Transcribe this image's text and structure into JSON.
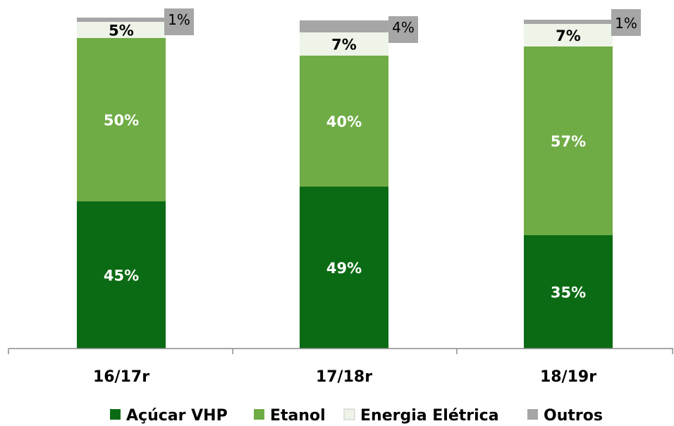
{
  "chart_data": {
    "type": "bar",
    "stacked": true,
    "categories": [
      "16/17r",
      "17/18r",
      "18/19r"
    ],
    "series": [
      {
        "name": "Açúcar VHP",
        "values": [
          45,
          49,
          35
        ],
        "labels": [
          "45%",
          "49%",
          "35%"
        ],
        "color": "#0b6b14"
      },
      {
        "name": "Etanol",
        "values": [
          50,
          40,
          57
        ],
        "labels": [
          "50%",
          "40%",
          "57%"
        ],
        "color": "#6fac46"
      },
      {
        "name": "Energia Elétrica",
        "values": [
          5,
          7,
          7
        ],
        "labels": [
          "5%",
          "7%",
          "7%"
        ],
        "color": "#eef4e8"
      },
      {
        "name": "Outros",
        "values": [
          1,
          4,
          1
        ],
        "labels": [
          "1%",
          "4%",
          "1%"
        ],
        "color": "#a6a6a6"
      }
    ],
    "ylim": [
      0,
      100
    ],
    "grid": false,
    "legend_position": "bottom"
  }
}
